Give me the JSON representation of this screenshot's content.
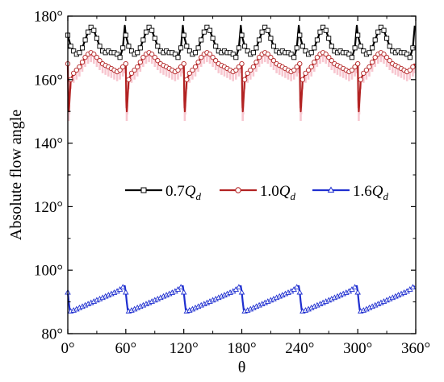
{
  "chart_data": {
    "type": "line",
    "xlabel": "θ",
    "ylabel": "Absolute flow angle",
    "xlim": [
      0,
      360
    ],
    "ylim": [
      80,
      180
    ],
    "xticks": [
      0,
      60,
      120,
      180,
      240,
      300,
      360
    ],
    "yticks": [
      80,
      100,
      120,
      140,
      160,
      180
    ],
    "xtick_labels": [
      "0°",
      "60°",
      "120°",
      "180°",
      "240°",
      "300°",
      "360°"
    ],
    "ytick_labels": [
      "80°",
      "100°",
      "120°",
      "140°",
      "160°",
      "180°"
    ],
    "grid": false,
    "legend_position": "middle",
    "series": [
      {
        "name": "0.7Qd",
        "legend_prefix": "0.7",
        "legend_main": "Q",
        "legend_sub": "d",
        "color": "#000000",
        "marker": "square",
        "x": [
          0,
          3,
          6,
          9,
          12,
          15,
          18,
          21,
          24,
          27,
          30,
          33,
          36,
          39,
          42,
          45,
          48,
          51,
          54,
          57,
          59,
          60,
          63,
          66,
          69,
          72,
          75,
          78,
          81,
          84,
          87,
          90,
          93,
          96,
          99,
          102,
          105,
          108,
          111,
          114,
          117,
          119,
          120,
          123,
          126,
          129,
          132,
          135,
          138,
          141,
          144,
          147,
          150,
          153,
          156,
          159,
          162,
          165,
          168,
          171,
          174,
          177,
          179,
          180,
          183,
          186,
          189,
          192,
          195,
          198,
          201,
          204,
          207,
          210,
          213,
          216,
          219,
          222,
          225,
          228,
          231,
          234,
          237,
          239,
          240,
          243,
          246,
          249,
          252,
          255,
          258,
          261,
          264,
          267,
          270,
          273,
          276,
          279,
          282,
          285,
          288,
          291,
          294,
          297,
          299,
          300,
          303,
          306,
          309,
          312,
          315,
          318,
          321,
          324,
          327,
          330,
          333,
          336,
          339,
          342,
          345,
          348,
          351,
          354,
          357,
          359
        ],
        "y": [
          174,
          170.5,
          169,
          168,
          168.5,
          170,
          172.5,
          175,
          176.5,
          175.5,
          173,
          170.5,
          169,
          168.5,
          169,
          168.5,
          168.5,
          168,
          167,
          170,
          177,
          174,
          170.5,
          169,
          168,
          168.5,
          170,
          172.5,
          175,
          176.5,
          175.5,
          173,
          170.5,
          169,
          168.5,
          169,
          168.5,
          168.5,
          168,
          167,
          170,
          177,
          174,
          170.5,
          169,
          168,
          168.5,
          170,
          172.5,
          175,
          176.5,
          175.5,
          173,
          170.5,
          169,
          168.5,
          169,
          168.5,
          168.5,
          168,
          167,
          170,
          177,
          174,
          170.5,
          169,
          168,
          168.5,
          170,
          172.5,
          175,
          176.5,
          175.5,
          173,
          170.5,
          169,
          168.5,
          169,
          168.5,
          168.5,
          168,
          167,
          170,
          177,
          174,
          170.5,
          169,
          168,
          168.5,
          170,
          172.5,
          175,
          176.5,
          175.5,
          173,
          170.5,
          169,
          168.5,
          169,
          168.5,
          168.5,
          168,
          167,
          170,
          177,
          174,
          170.5,
          169,
          168,
          168.5,
          170,
          172.5,
          175,
          176.5,
          175.5,
          173,
          170.5,
          169,
          168.5,
          169,
          168.5,
          168.5,
          168,
          167,
          170,
          177
        ]
      },
      {
        "name": "1.0Qd",
        "legend_prefix": "1.0",
        "legend_main": "Q",
        "legend_sub": "d",
        "color": "#b22222",
        "band_color": "#f7c6cf",
        "marker": "circle",
        "x": [
          0,
          0.5,
          1,
          1.5,
          3,
          6,
          9,
          12,
          15,
          18,
          21,
          24,
          27,
          30,
          33,
          36,
          39,
          42,
          45,
          48,
          51,
          54,
          57,
          59,
          60,
          60.5,
          61,
          61.5,
          63,
          66,
          69,
          72,
          75,
          78,
          81,
          84,
          87,
          90,
          93,
          96,
          99,
          102,
          105,
          108,
          111,
          114,
          117,
          119,
          120,
          120.5,
          121,
          121.5,
          123,
          126,
          129,
          132,
          135,
          138,
          141,
          144,
          147,
          150,
          153,
          156,
          159,
          162,
          165,
          168,
          171,
          174,
          177,
          179,
          180,
          180.5,
          181,
          181.5,
          183,
          186,
          189,
          192,
          195,
          198,
          201,
          204,
          207,
          210,
          213,
          216,
          219,
          222,
          225,
          228,
          231,
          234,
          237,
          239,
          240,
          240.5,
          241,
          241.5,
          243,
          246,
          249,
          252,
          255,
          258,
          261,
          264,
          267,
          270,
          273,
          276,
          279,
          282,
          285,
          288,
          291,
          294,
          297,
          299,
          300,
          300.5,
          301,
          301.5,
          303,
          306,
          309,
          312,
          315,
          318,
          321,
          324,
          327,
          330,
          333,
          336,
          339,
          342,
          345,
          348,
          351,
          354,
          357,
          359
        ],
        "y": [
          165,
          154,
          150,
          152,
          160,
          162,
          163,
          164,
          165.5,
          167,
          168,
          168.5,
          168,
          167,
          166,
          165,
          164.5,
          164,
          163.5,
          163,
          162.5,
          163,
          164,
          165,
          165,
          154,
          150,
          152,
          160,
          162,
          163,
          164,
          165.5,
          167,
          168,
          168.5,
          168,
          167,
          166,
          165,
          164.5,
          164,
          163.5,
          163,
          162.5,
          163,
          164,
          165,
          165,
          154,
          150,
          152,
          160,
          162,
          163,
          164,
          165.5,
          167,
          168,
          168.5,
          168,
          167,
          166,
          165,
          164.5,
          164,
          163.5,
          163,
          162.5,
          163,
          164,
          165,
          165,
          154,
          150,
          152,
          160,
          162,
          163,
          164,
          165.5,
          167,
          168,
          168.5,
          168,
          167,
          166,
          165,
          164.5,
          164,
          163.5,
          163,
          162.5,
          163,
          164,
          165,
          165,
          154,
          150,
          152,
          160,
          162,
          163,
          164,
          165.5,
          167,
          168,
          168.5,
          168,
          167,
          166,
          165,
          164.5,
          164,
          163.5,
          163,
          162.5,
          163,
          164,
          165,
          165,
          154,
          150,
          152,
          160,
          162,
          163,
          164,
          165.5,
          167,
          168,
          168.5,
          168,
          167,
          166,
          165,
          164.5,
          164,
          163.5,
          163,
          162.5,
          163,
          164,
          165
        ]
      },
      {
        "name": "1.6Qd",
        "legend_prefix": "1.6",
        "legend_main": "Q",
        "legend_sub": "d",
        "color": "#1f2fd0",
        "marker": "triangle",
        "x": [
          0,
          1,
          2,
          3,
          6,
          9,
          12,
          15,
          18,
          21,
          24,
          27,
          30,
          33,
          36,
          39,
          42,
          45,
          48,
          51,
          54,
          57,
          59,
          60,
          61,
          62,
          63,
          66,
          69,
          72,
          75,
          78,
          81,
          84,
          87,
          90,
          93,
          96,
          99,
          102,
          105,
          108,
          111,
          114,
          117,
          119,
          120,
          121,
          122,
          123,
          126,
          129,
          132,
          135,
          138,
          141,
          144,
          147,
          150,
          153,
          156,
          159,
          162,
          165,
          168,
          171,
          174,
          177,
          179,
          180,
          181,
          182,
          183,
          186,
          189,
          192,
          195,
          198,
          201,
          204,
          207,
          210,
          213,
          216,
          219,
          222,
          225,
          228,
          231,
          234,
          237,
          239,
          240,
          241,
          242,
          243,
          246,
          249,
          252,
          255,
          258,
          261,
          264,
          267,
          270,
          273,
          276,
          279,
          282,
          285,
          288,
          291,
          294,
          297,
          299,
          300,
          301,
          302,
          303,
          306,
          309,
          312,
          315,
          318,
          321,
          324,
          327,
          330,
          333,
          336,
          339,
          342,
          345,
          348,
          351,
          354,
          357,
          359
        ],
        "y": [
          93,
          90,
          87.5,
          87,
          87.3,
          87.7,
          88.1,
          88.5,
          88.9,
          89.3,
          89.7,
          90.1,
          90.5,
          90.9,
          91.3,
          91.7,
          92.1,
          92.5,
          92.9,
          93.3,
          93.9,
          94.6,
          95,
          93,
          90,
          87.5,
          87,
          87.3,
          87.7,
          88.1,
          88.5,
          88.9,
          89.3,
          89.7,
          90.1,
          90.5,
          90.9,
          91.3,
          91.7,
          92.1,
          92.5,
          92.9,
          93.3,
          93.9,
          94.6,
          95,
          93,
          90,
          87.5,
          87,
          87.3,
          87.7,
          88.1,
          88.5,
          88.9,
          89.3,
          89.7,
          90.1,
          90.5,
          90.9,
          91.3,
          91.7,
          92.1,
          92.5,
          92.9,
          93.3,
          93.9,
          94.6,
          95,
          93,
          90,
          87.5,
          87,
          87.3,
          87.7,
          88.1,
          88.5,
          88.9,
          89.3,
          89.7,
          90.1,
          90.5,
          90.9,
          91.3,
          91.7,
          92.1,
          92.5,
          92.9,
          93.3,
          93.9,
          94.6,
          95,
          93,
          90,
          87.5,
          87,
          87.3,
          87.7,
          88.1,
          88.5,
          88.9,
          89.3,
          89.7,
          90.1,
          90.5,
          90.9,
          91.3,
          91.7,
          92.1,
          92.5,
          92.9,
          93.3,
          93.9,
          94.6,
          95,
          93,
          90,
          87.5,
          87,
          87.3,
          87.7,
          88.1,
          88.5,
          88.9,
          89.3,
          89.7,
          90.1,
          90.5,
          90.9,
          91.3,
          91.7,
          92.1,
          92.5,
          92.9,
          93.3,
          93.9,
          94.6,
          95
        ]
      }
    ]
  }
}
